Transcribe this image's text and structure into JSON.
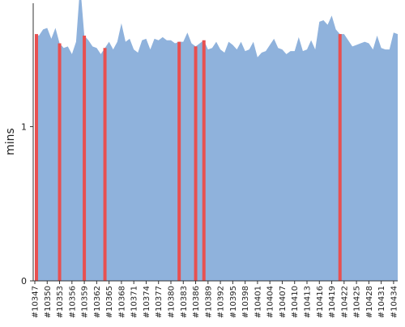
{
  "chart_data": {
    "type": "area",
    "ylabel": "mins",
    "ylim": [
      0,
      1.8
    ],
    "yticks": [
      {
        "value": 0,
        "label": "0"
      },
      {
        "value": 1,
        "label": "1"
      }
    ],
    "grid": {
      "y_major": true,
      "style": "dotted"
    },
    "x": [
      "#10347",
      "#10348",
      "#10349",
      "#10350",
      "#10351",
      "#10352",
      "#10353",
      "#10354",
      "#10355",
      "#10356",
      "#10357",
      "#10358",
      "#10359",
      "#10360",
      "#10361",
      "#10362",
      "#10363",
      "#10364",
      "#10365",
      "#10366",
      "#10367",
      "#10368",
      "#10369",
      "#10370",
      "#10371",
      "#10372",
      "#10373",
      "#10374",
      "#10375",
      "#10376",
      "#10377",
      "#10378",
      "#10379",
      "#10380",
      "#10381",
      "#10382",
      "#10383",
      "#10384",
      "#10385",
      "#10386",
      "#10387",
      "#10388",
      "#10389",
      "#10390",
      "#10391",
      "#10392",
      "#10393",
      "#10394",
      "#10395",
      "#10396",
      "#10397",
      "#10398",
      "#10399",
      "#10400",
      "#10401",
      "#10402",
      "#10403",
      "#10404",
      "#10405",
      "#10406",
      "#10407",
      "#10408",
      "#10409",
      "#10410",
      "#10411",
      "#10412",
      "#10413",
      "#10414",
      "#10415",
      "#10416",
      "#10417",
      "#10418",
      "#10419",
      "#10420",
      "#10421",
      "#10422",
      "#10423",
      "#10424",
      "#10425",
      "#10426",
      "#10427",
      "#10428",
      "#10429",
      "#10430",
      "#10431",
      "#10432",
      "#10433",
      "#10434",
      "#10435"
    ],
    "xtick_labels": [
      "#10347",
      "#10350",
      "#10353",
      "#10356",
      "#10359",
      "#10362",
      "#10365",
      "#10368",
      "#10371",
      "#10374",
      "#10377",
      "#10380",
      "#10383",
      "#10386",
      "#10389",
      "#10392",
      "#10395",
      "#10398",
      "#10401",
      "#10404",
      "#10407",
      "#10410",
      "#10413",
      "#10416",
      "#10419",
      "#10422",
      "#10425",
      "#10428",
      "#10431",
      "#10434"
    ],
    "series": [
      {
        "color": "#8fb2dc",
        "values": [
          1.6,
          1.59,
          1.63,
          1.64,
          1.57,
          1.64,
          1.54,
          1.51,
          1.52,
          1.47,
          1.55,
          1.92,
          1.59,
          1.56,
          1.52,
          1.51,
          1.47,
          1.51,
          1.55,
          1.5,
          1.55,
          1.67,
          1.55,
          1.57,
          1.5,
          1.48,
          1.56,
          1.57,
          1.5,
          1.57,
          1.56,
          1.58,
          1.56,
          1.56,
          1.54,
          1.55,
          1.55,
          1.61,
          1.54,
          1.52,
          1.54,
          1.56,
          1.5,
          1.51,
          1.55,
          1.5,
          1.48,
          1.55,
          1.53,
          1.5,
          1.55,
          1.49,
          1.5,
          1.55,
          1.45,
          1.48,
          1.49,
          1.53,
          1.57,
          1.51,
          1.5,
          1.47,
          1.49,
          1.49,
          1.58,
          1.49,
          1.5,
          1.56,
          1.5,
          1.68,
          1.69,
          1.66,
          1.72,
          1.63,
          1.6,
          1.6,
          1.56,
          1.52,
          1.53,
          1.54,
          1.55,
          1.54,
          1.5,
          1.59,
          1.51,
          1.5,
          1.5,
          1.61,
          1.6
        ]
      }
    ],
    "highlights": {
      "color": "#e85050",
      "x": [
        "#10347",
        "#10353",
        "#10359",
        "#10364",
        "#10382",
        "#10386",
        "#10388",
        "#10421"
      ]
    }
  }
}
